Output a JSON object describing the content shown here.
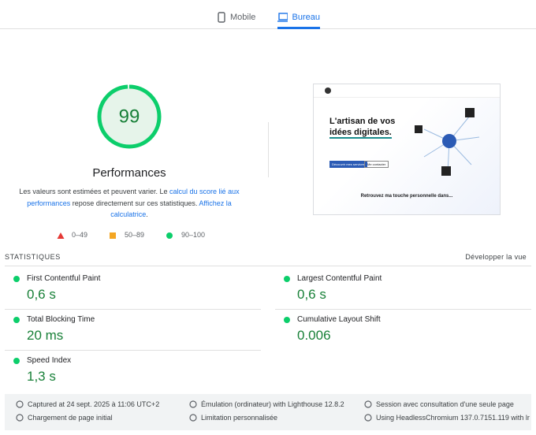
{
  "tabs": [
    {
      "label": "Mobile"
    },
    {
      "label": "Bureau",
      "selected": true
    }
  ],
  "score": {
    "value": 99,
    "label": "Performances"
  },
  "description": {
    "parts": [
      {
        "text": "Les valeurs sont estimées et peuvent varier. Le "
      },
      {
        "text": "calcul du score lié aux performances",
        "link": true
      },
      {
        "text": " repose directement sur ces statistiques. "
      },
      {
        "text": "Affichez la calculatrice",
        "link": true
      },
      {
        "text": "."
      }
    ]
  },
  "legend": [
    {
      "range": "0–49"
    },
    {
      "range": "50–89"
    },
    {
      "range": "90–100"
    }
  ],
  "thumbnail": {
    "headline": [
      "L'artisan de vos",
      "idées digitales."
    ],
    "buttons": [
      "Découvrir mes services",
      "Me contacter"
    ],
    "footer": "Retrouvez ma touche personnelle dans..."
  },
  "metrics": {
    "title": "STATISTIQUES",
    "toggle": "Développer la vue",
    "items": [
      {
        "label": "First Contentful Paint",
        "value": "0,6 s"
      },
      {
        "label": "Largest Contentful Paint",
        "value": "0,6 s"
      },
      {
        "label": "Total Blocking Time",
        "value": "20 ms"
      },
      {
        "label": "Cumulative Layout Shift",
        "value": "0.006"
      },
      {
        "label": "Speed Index",
        "value": "1,3 s"
      }
    ]
  },
  "footer": [
    "Captured at 24 sept. 2025 à 11:06 UTC+2",
    "Émulation (ordinateur) with Lighthouse 12.8.2",
    "Session avec consultation d'une seule page",
    "Chargement de page initial",
    "Limitation personnalisée",
    "Using HeadlessChromium 137.0.7151.119 with lr"
  ]
}
